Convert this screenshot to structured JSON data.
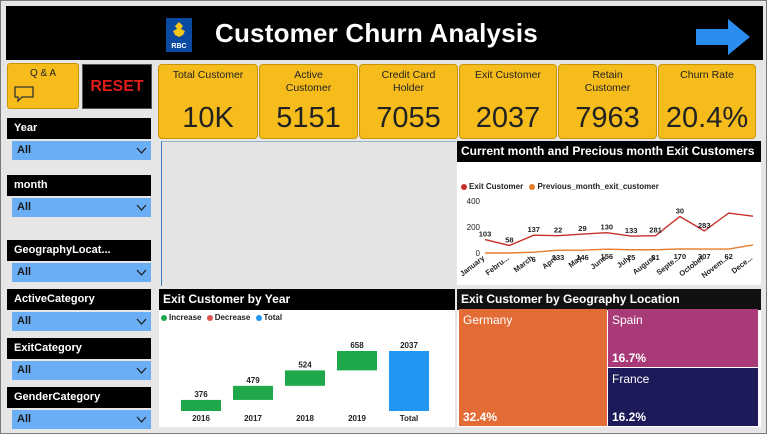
{
  "header": {
    "title": "Customer Churn Analysis",
    "logo_text": "RBC"
  },
  "qa_button": {
    "label": "Q & A"
  },
  "reset_button": {
    "label": "RESET"
  },
  "kpis": [
    {
      "label": "Total Customer",
      "value": "10K"
    },
    {
      "label": "Active Customer",
      "value": "5151"
    },
    {
      "label": "Credit Card Holder",
      "value": "7055"
    },
    {
      "label": "Exit Customer",
      "value": "2037"
    },
    {
      "label": "Retain Customer",
      "value": "7963"
    },
    {
      "label": "Churn Rate",
      "value": "20.4%"
    }
  ],
  "slicers": [
    {
      "label": "Year",
      "value": "All"
    },
    {
      "label": "month",
      "value": "All"
    },
    {
      "label": "GeographyLocat...",
      "value": "All"
    },
    {
      "label": "ActiveCategory",
      "value": "All"
    },
    {
      "label": "ExitCategory",
      "value": "All"
    },
    {
      "label": "GenderCategory",
      "value": "All"
    }
  ],
  "monthly_chart": {
    "title": "Current month and Precious month Exit Customers",
    "legend": [
      "Exit Customer",
      "Previous_month_exit_customer"
    ],
    "colors": {
      "current": "#c8302b",
      "previous": "#e87c2e"
    }
  },
  "waterfall_chart": {
    "title": "Exit Customer by Year",
    "legend": [
      "Increase",
      "Decrease",
      "Total"
    ],
    "colors": {
      "increase": "#1fa84a",
      "decrease": "#e05555",
      "total": "#2196f3"
    }
  },
  "geo_chart": {
    "title": "Exit Customer by Geography Location",
    "cells": [
      {
        "name": "Germany",
        "pct": "32.4%",
        "color": "#e36c36"
      },
      {
        "name": "Spain",
        "pct": "16.7%",
        "color": "#a83a78"
      },
      {
        "name": "France",
        "pct": "16.2%",
        "color": "#1c1a58"
      }
    ]
  },
  "chart_data": [
    {
      "type": "line",
      "categories": [
        "January",
        "February",
        "March",
        "April",
        "May",
        "June",
        "July",
        "August",
        "September",
        "October",
        "November",
        "December"
      ],
      "tick_labels": [
        "January",
        "Febru...",
        "March",
        "April",
        "May",
        "June",
        "July",
        "August",
        "Septe...",
        "October",
        "Novem...",
        "Dece..."
      ],
      "series": [
        {
          "name": "Exit Customer",
          "values": [
            103,
            58,
            137,
            133,
            146,
            156,
            130,
            133,
            281,
            170,
            307,
            283
          ]
        },
        {
          "name": "Previous_month_exit_customer",
          "values": [
            0,
            0,
            6,
            22,
            22,
            29,
            25,
            25,
            31,
            30,
            30,
            62
          ]
        }
      ],
      "data_labels": [
        "103",
        "58",
        "6",
        "137",
        "133",
        "22",
        "146",
        "29",
        "156",
        "130",
        "25",
        "133",
        "31",
        "281",
        "170",
        "30",
        "307",
        "283",
        "62"
      ],
      "yticks": [
        "400",
        "200",
        "0"
      ],
      "ylim": [
        0,
        400
      ]
    },
    {
      "type": "bar",
      "subtype": "waterfall",
      "categories": [
        "2016",
        "2017",
        "2018",
        "2019",
        "Total"
      ],
      "values": [
        376,
        479,
        524,
        658,
        2037
      ],
      "labels": [
        "376",
        "479",
        "524",
        "658",
        "2037"
      ]
    },
    {
      "type": "treemap",
      "categories": [
        "Germany",
        "Spain",
        "France"
      ],
      "labels": [
        "32.4%",
        "16.7%",
        "16.2%"
      ]
    }
  ]
}
